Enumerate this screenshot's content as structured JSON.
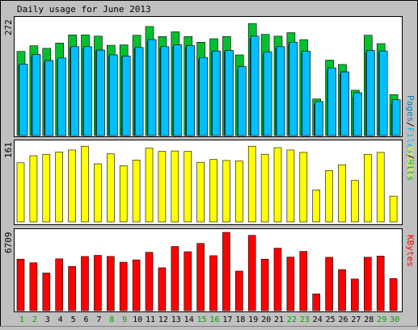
{
  "chart_data": [
    {
      "type": "bar",
      "title": "Daily usage for June 2013",
      "categories": [
        "1",
        "2",
        "3",
        "4",
        "5",
        "6",
        "7",
        "8",
        "9",
        "10",
        "11",
        "12",
        "13",
        "14",
        "15",
        "16",
        "17",
        "18",
        "19",
        "20",
        "21",
        "22",
        "23",
        "24",
        "25",
        "26",
        "27",
        "28",
        "29",
        "30"
      ],
      "weekend_days": [
        "1",
        "2",
        "8",
        "9",
        "15",
        "16",
        "22",
        "23",
        "29",
        "30"
      ],
      "ymax_label": "272",
      "ylim": [
        0,
        272
      ],
      "legend": [
        "Pages",
        "Files",
        "Hits"
      ],
      "series": [
        {
          "name": "Hits",
          "values": [
            193,
            206,
            200,
            212,
            231,
            231,
            228,
            207,
            208,
            230,
            250,
            227,
            238,
            227,
            214,
            222,
            227,
            185,
            257,
            232,
            228,
            236,
            220,
            84,
            173,
            163,
            104,
            230,
            211,
            94
          ]
        },
        {
          "name": "Files",
          "values": [
            164,
            186,
            172,
            178,
            204,
            204,
            196,
            185,
            182,
            202,
            220,
            204,
            208,
            206,
            179,
            194,
            195,
            158,
            228,
            192,
            204,
            214,
            193,
            78,
            155,
            146,
            98,
            195,
            194,
            82
          ]
        },
        {
          "name": "Pages",
          "values": [
            160,
            180,
            168,
            175,
            201,
            199,
            194,
            182,
            180,
            199,
            215,
            200,
            204,
            202,
            174,
            190,
            192,
            150,
            222,
            186,
            200,
            210,
            189,
            70,
            150,
            140,
            88,
            190,
            190,
            72
          ]
        }
      ]
    },
    {
      "type": "bar",
      "ymax_label": "161",
      "ylim": [
        0,
        161
      ],
      "legend": [
        "Visits"
      ],
      "series": [
        {
          "name": "Visits",
          "values": [
            124,
            139,
            142,
            147,
            151,
            159,
            122,
            143,
            118,
            130,
            155,
            148,
            149,
            148,
            125,
            131,
            129,
            128,
            159,
            142,
            156,
            151,
            146,
            67,
            108,
            120,
            87,
            142,
            146,
            54
          ]
        }
      ]
    },
    {
      "type": "bar",
      "ymax_label": "6709",
      "ylim": [
        0,
        6709
      ],
      "legend": [
        "KBytes"
      ],
      "series": [
        {
          "name": "KBytes",
          "values": [
            4410,
            4100,
            3230,
            4440,
            3790,
            4640,
            4740,
            4650,
            4150,
            4350,
            5000,
            3670,
            5500,
            5050,
            5760,
            4710,
            6709,
            3390,
            6450,
            4410,
            5350,
            4590,
            5080,
            1440,
            4570,
            3520,
            2710,
            4580,
            4680,
            2750
          ]
        }
      ]
    }
  ],
  "colors": {
    "hits": "#00c030",
    "files": "#00c0ff",
    "pages": "#0080c0",
    "visits": "#ffff00",
    "kbytes": "#ff0000",
    "weekday_label": "#000000",
    "weekend_label": "#00a000"
  }
}
